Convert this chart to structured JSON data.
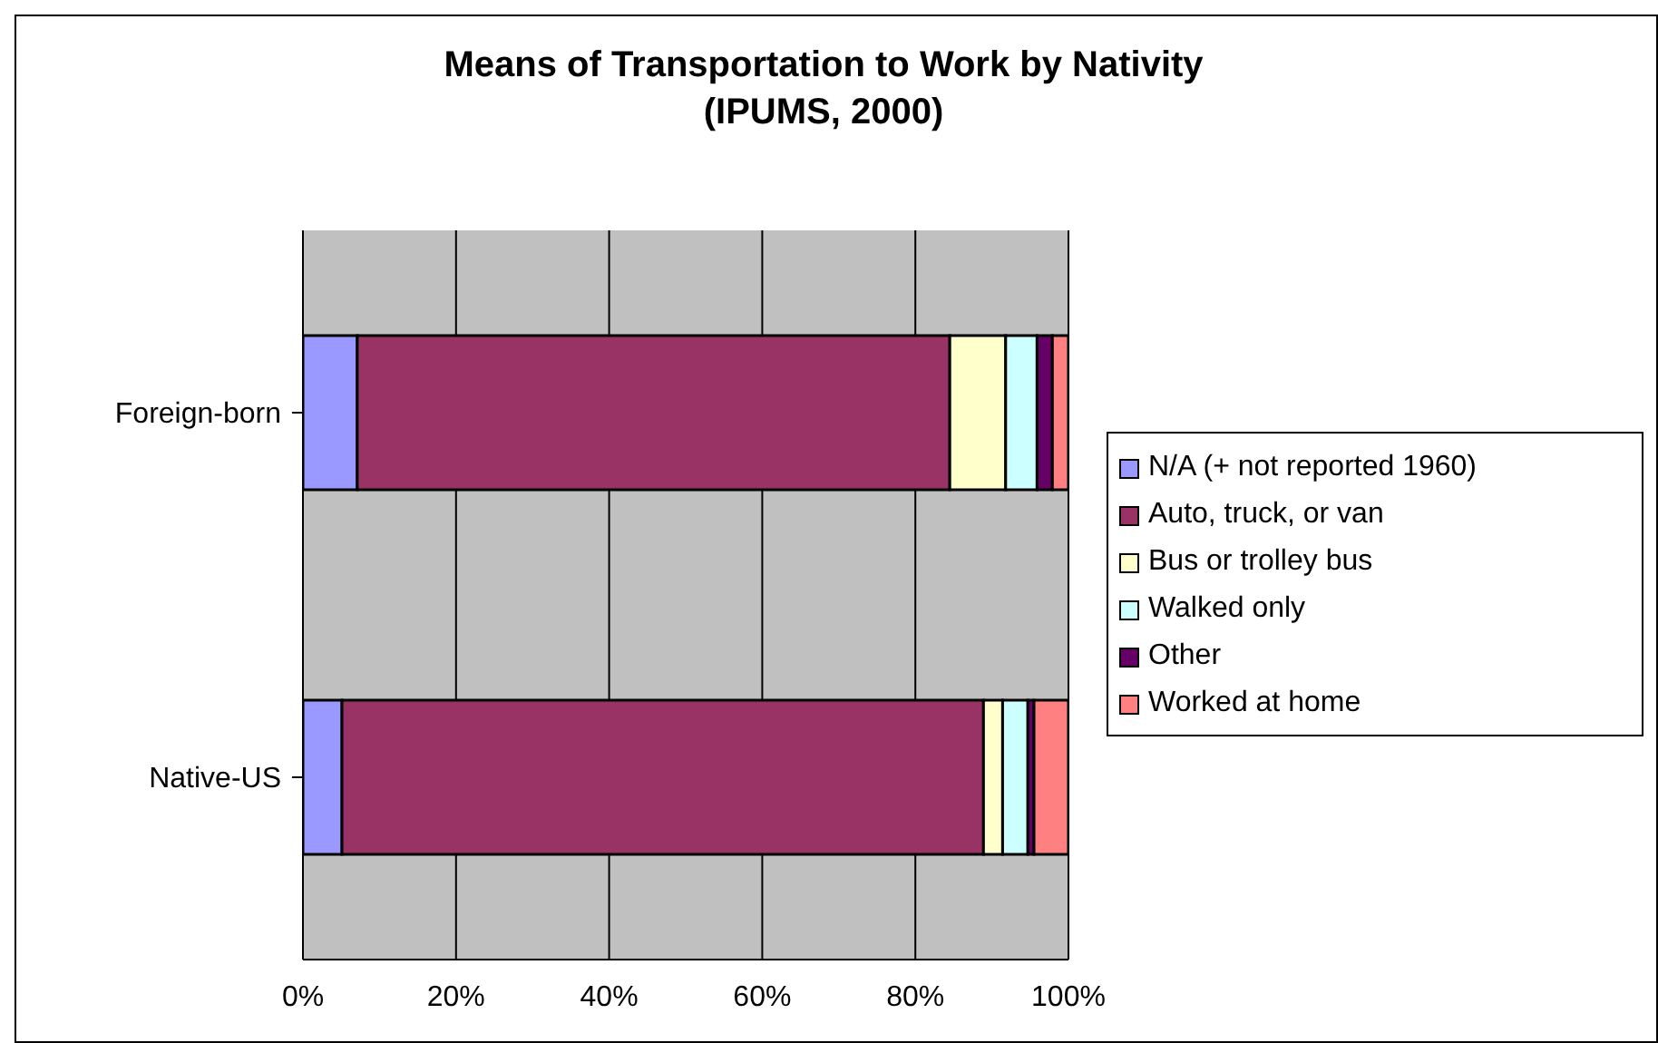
{
  "chart_data": {
    "type": "bar",
    "orientation": "horizontal",
    "stacked": true,
    "title": "Means of Transportation to Work by Nativity (IPUMS, 2000)",
    "categories": [
      "Foreign-born",
      "Native-US"
    ],
    "series": [
      {
        "name": "N/A (+ not reported 1960)",
        "color": "#9999ff",
        "values": [
          7.1,
          5.1
        ]
      },
      {
        "name": "Auto, truck, or van",
        "color": "#993366",
        "values": [
          77.4,
          83.8
        ]
      },
      {
        "name": "Bus or trolley bus",
        "color": "#ffffcc",
        "values": [
          7.3,
          2.5
        ]
      },
      {
        "name": "Walked only",
        "color": "#ccffff",
        "values": [
          4.1,
          3.3
        ]
      },
      {
        "name": "Other",
        "color": "#660066",
        "values": [
          2.0,
          0.8
        ]
      },
      {
        "name": "Worked at home",
        "color": "#ff8080",
        "values": [
          2.1,
          4.5
        ]
      }
    ],
    "xlim": [
      0,
      100
    ],
    "xticks": [
      {
        "value": 0,
        "label": "0%"
      },
      {
        "value": 20,
        "label": "20%"
      },
      {
        "value": 40,
        "label": "40%"
      },
      {
        "value": 60,
        "label": "60%"
      },
      {
        "value": 80,
        "label": "80%"
      },
      {
        "value": 100,
        "label": "100%"
      }
    ],
    "grid": "x",
    "legend": "right"
  }
}
